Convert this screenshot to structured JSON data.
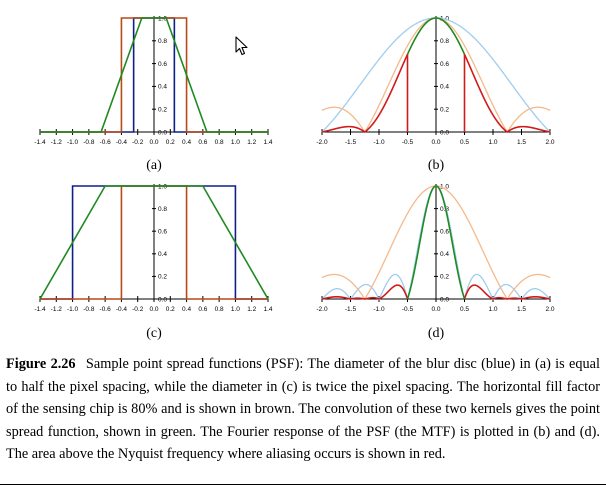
{
  "colors": {
    "blue_psf": "#0f1f8a",
    "brown_fill": "#b84a17",
    "green_conv": "#1f8a1f",
    "red_alias": "#d11a1a",
    "light_blue": "#9fcdf0",
    "light_orange": "#f5b98a"
  },
  "panels": [
    {
      "id": "a",
      "label": "(a)"
    },
    {
      "id": "b",
      "label": "(b)"
    },
    {
      "id": "c",
      "label": "(c)"
    },
    {
      "id": "d",
      "label": "(d)"
    }
  ],
  "chart_data": [
    {
      "panel": "a",
      "type": "line",
      "xlim": [
        -1.4,
        1.4
      ],
      "ylim": [
        0,
        1
      ],
      "x_ticks": [
        "-1.4",
        "-1.2",
        "-1.0",
        "-0.8",
        "-0.6",
        "-0.4",
        "-0.2",
        "0.0",
        "0.2",
        "0.4",
        "0.6",
        "0.8",
        "1.0",
        "1.2",
        "1.4"
      ],
      "y_ticks": [
        "0.0",
        "0.2",
        "0.4",
        "0.6",
        "0.8",
        "1.0"
      ],
      "series": [
        {
          "color": "blue_psf",
          "kind": "box",
          "x": [
            -0.25,
            0.25
          ]
        },
        {
          "color": "brown_fill",
          "kind": "box",
          "x": [
            -0.4,
            0.4
          ]
        },
        {
          "color": "green_conv",
          "kind": "trapezoid",
          "x": [
            -0.65,
            -0.15,
            0.15,
            0.65
          ]
        }
      ]
    },
    {
      "panel": "b",
      "type": "line",
      "xlim": [
        -2.0,
        2.0
      ],
      "ylim": [
        0,
        1
      ],
      "x_ticks": [
        "-2.0",
        "-1.5",
        "-1.0",
        "-0.5",
        "0.0",
        "0.5",
        "1.0",
        "1.5",
        "2.0"
      ],
      "y_ticks": [
        "0.0",
        "0.2",
        "0.4",
        "0.6",
        "0.8",
        "1.0"
      ],
      "blue_width": 0.5,
      "fill_width": 0.8,
      "nyquist": 0.5
    },
    {
      "panel": "c",
      "type": "line",
      "xlim": [
        -1.4,
        1.4
      ],
      "ylim": [
        0,
        1
      ],
      "x_ticks": [
        "-1.4",
        "-1.2",
        "-1.0",
        "-0.8",
        "-0.6",
        "-0.4",
        "-0.2",
        "0.0",
        "0.2",
        "0.4",
        "0.6",
        "0.8",
        "1.0",
        "1.2",
        "1.4"
      ],
      "y_ticks": [
        "0.0",
        "0.2",
        "0.4",
        "0.6",
        "0.8",
        "1.0"
      ],
      "series": [
        {
          "color": "blue_psf",
          "kind": "box",
          "x": [
            -1.0,
            1.0
          ]
        },
        {
          "color": "brown_fill",
          "kind": "box",
          "x": [
            -0.4,
            0.4
          ]
        },
        {
          "color": "green_conv",
          "kind": "trapezoid",
          "x": [
            -1.4,
            -0.6,
            0.6,
            1.4
          ]
        }
      ]
    },
    {
      "panel": "d",
      "type": "line",
      "xlim": [
        -2.0,
        2.0
      ],
      "ylim": [
        0,
        1
      ],
      "x_ticks": [
        "-2.0",
        "-1.5",
        "-1.0",
        "-0.5",
        "0.0",
        "0.5",
        "1.0",
        "1.5",
        "2.0"
      ],
      "y_ticks": [
        "0.0",
        "0.2",
        "0.4",
        "0.6",
        "0.8",
        "1.0"
      ],
      "blue_width": 2.0,
      "fill_width": 0.8,
      "nyquist": 0.5
    }
  ],
  "caption": {
    "figure_label": "Figure 2.26",
    "text": "Sample point spread functions (PSF): The diameter of the blur disc (blue) in (a) is equal to half the pixel spacing, while the diameter in (c) is twice the pixel spacing. The horizontal fill factor of the sensing chip is 80% and is shown in brown. The convolution of these two kernels gives the point spread function, shown in green. The Fourier response of the PSF (the MTF) is plotted in (b) and (d). The area above the Nyquist frequency where aliasing occurs is shown in red."
  }
}
